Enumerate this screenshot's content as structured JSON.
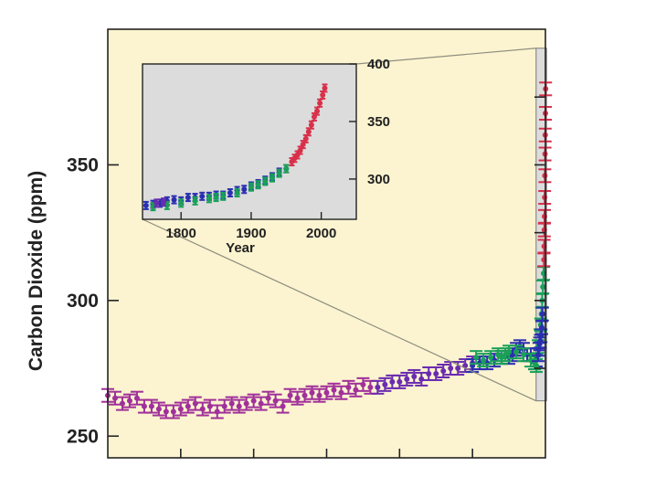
{
  "chart_data": [
    {
      "type": "scatter",
      "panel": "main",
      "title": "",
      "xlabel": "",
      "ylabel": "Carbon Dioxide (ppm)",
      "ylim": [
        242,
        400
      ],
      "xlim": [
        -10000,
        2000
      ],
      "yticks": [
        250,
        300,
        350
      ],
      "ytick_labels": [
        "250",
        "300",
        "350"
      ],
      "xticks_unlabeled_count": 5,
      "grid": false,
      "legend": "none",
      "colors": {
        "background": "#fcf4d0",
        "inset_region": "#dcdcdc",
        "magenta": "#a0309a",
        "purple": "#6a2bb0",
        "blue": "#2a2fb0",
        "green": "#1aa058",
        "red": "#d8304a",
        "connector": "#8e8e80"
      },
      "series": [
        {
          "color": "#a0309a",
          "x": [
            -10000,
            -9800,
            -9600,
            -9400,
            -9200,
            -9000,
            -8800,
            -8600,
            -8400,
            -8200,
            -8000,
            -7800,
            -7600,
            -7400,
            -7200,
            -7000,
            -6800,
            -6600,
            -6400,
            -6200,
            -6000,
            -5800,
            -5600,
            -5400,
            -5200,
            -5000,
            -4800,
            -4600,
            -4400,
            -4200,
            -4000,
            -3800,
            -3600,
            -3400,
            -3200,
            -3000,
            -2800
          ],
          "y": [
            265,
            264,
            262,
            263,
            264,
            261,
            261,
            260,
            259,
            259,
            260,
            261,
            262,
            260,
            261,
            259,
            261,
            262,
            261,
            262,
            263,
            262,
            264,
            263,
            261,
            265,
            264,
            265,
            266,
            265,
            266,
            267,
            266,
            268,
            267,
            269,
            268
          ]
        },
        {
          "color": "#6a2bb0",
          "x": [
            -2600,
            -2400,
            -2200,
            -2000,
            -1800,
            -1600,
            -1400,
            -1200,
            -1000,
            -800,
            -600,
            -400,
            -200,
            0
          ],
          "y": [
            268,
            269,
            270,
            270,
            271,
            272,
            271,
            273,
            273,
            274,
            275,
            275,
            276,
            277
          ]
        },
        {
          "color": "#2a2fb0",
          "x": [
            0,
            200,
            400,
            600,
            800,
            1000,
            1100,
            1200,
            1300,
            1400,
            1500,
            1600,
            1700,
            1750
          ],
          "y": [
            276,
            277,
            277,
            278,
            279,
            279,
            280,
            282,
            283,
            282,
            280,
            280,
            277,
            278
          ]
        },
        {
          "color": "#1aa058",
          "x": [
            100,
            300,
            500,
            700,
            800,
            900,
            1000,
            1200,
            1400,
            1600,
            1700,
            1750,
            1800,
            1850,
            1870,
            1890,
            1910,
            1930,
            1950
          ],
          "y": [
            279,
            278,
            279,
            280,
            279,
            280,
            281,
            281,
            280,
            278,
            277,
            276,
            283,
            287,
            291,
            295,
            300,
            305,
            310
          ]
        },
        {
          "color": "#2a2fb0",
          "x": [
            1800,
            1820,
            1840,
            1860,
            1880,
            1900,
            1920
          ],
          "y": [
            280,
            282,
            284,
            285,
            287,
            290,
            295
          ]
        },
        {
          "color": "#d8304a",
          "x": [
            1958,
            1965,
            1970,
            1975,
            1980,
            1985,
            1990,
            1995,
            2000,
            2005
          ],
          "y": [
            315,
            320,
            326,
            331,
            338,
            346,
            354,
            361,
            369,
            378
          ]
        }
      ]
    },
    {
      "type": "scatter",
      "panel": "inset",
      "title": "",
      "xlabel": "Year",
      "ylabel": "",
      "xlim": [
        1745,
        2050
      ],
      "ylim": [
        265,
        400
      ],
      "xticks": [
        1800,
        1900,
        2000
      ],
      "xtick_labels": [
        "1800",
        "1900",
        "2000"
      ],
      "yticks": [
        300,
        350,
        400
      ],
      "ytick_labels": [
        "300",
        "350",
        "400"
      ],
      "grid": false,
      "legend": "none",
      "series": [
        {
          "color": "#2a2fb0",
          "x": [
            1750,
            1760,
            1770,
            1780,
            1790,
            1800,
            1810,
            1820,
            1830,
            1840,
            1850,
            1860,
            1870,
            1880,
            1890,
            1900,
            1910,
            1920,
            1930,
            1940,
            1950
          ],
          "y": [
            277,
            278,
            279,
            281,
            282,
            281,
            284,
            284,
            285,
            285,
            286,
            286,
            288,
            290,
            291,
            294,
            296,
            299,
            302,
            306,
            309
          ]
        },
        {
          "color": "#1aa058",
          "x": [
            1760,
            1780,
            1800,
            1820,
            1840,
            1850,
            1860,
            1880,
            1900,
            1910,
            1920,
            1930,
            1940,
            1950
          ],
          "y": [
            276,
            277,
            279,
            281,
            283,
            284,
            285,
            288,
            293,
            295,
            298,
            301,
            305,
            309
          ]
        },
        {
          "color": "#6a2bb0",
          "x": [
            1765,
            1775
          ],
          "y": [
            279,
            280
          ]
        },
        {
          "color": "#d8304a",
          "x": [
            1958,
            1962,
            1966,
            1970,
            1974,
            1978,
            1982,
            1986,
            1990,
            1994,
            1998,
            2002,
            2005
          ],
          "y": [
            315,
            318,
            321,
            325,
            330,
            335,
            341,
            347,
            354,
            359,
            366,
            373,
            379
          ]
        }
      ]
    }
  ]
}
